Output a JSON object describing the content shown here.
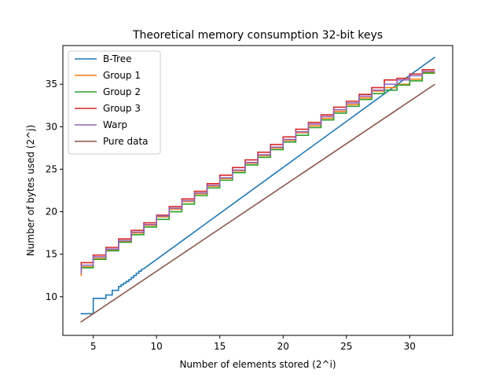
{
  "chart_data": {
    "type": "line",
    "title": "Theoretical memory consumption 32-bit keys",
    "xlabel": "Number of elements stored (2^i)",
    "ylabel": "Number of bytes used (2^j)",
    "xlim": [
      2.6,
      33.4
    ],
    "ylim": [
      5.45,
      39.55
    ],
    "xticks": [
      5,
      10,
      15,
      20,
      25,
      30
    ],
    "yticks": [
      10,
      15,
      20,
      25,
      30,
      35
    ],
    "grid": false,
    "legend_position": "top-left",
    "series": [
      {
        "name": "B-Tree",
        "color": "#1f77b4",
        "points": [
          [
            4,
            8.0
          ],
          [
            5,
            8.0
          ],
          [
            5,
            9.8
          ],
          [
            6,
            9.8
          ],
          [
            6,
            10.2
          ],
          [
            6.5,
            10.2
          ],
          [
            6.5,
            10.75
          ],
          [
            7,
            10.75
          ],
          [
            7,
            11.2
          ],
          [
            7.2,
            11.2
          ],
          [
            7.2,
            11.4
          ],
          [
            7.4,
            11.4
          ],
          [
            7.4,
            11.6
          ],
          [
            7.6,
            11.6
          ],
          [
            7.6,
            11.8
          ],
          [
            7.8,
            11.8
          ],
          [
            7.8,
            12.0
          ],
          [
            8,
            12.0
          ],
          [
            8,
            12.25
          ],
          [
            8.2,
            12.25
          ],
          [
            8.2,
            12.5
          ],
          [
            8.4,
            12.5
          ],
          [
            8.4,
            12.75
          ],
          [
            8.6,
            12.75
          ],
          [
            8.6,
            13.0
          ],
          [
            8.8,
            13.0
          ],
          [
            8.8,
            13.2
          ],
          [
            9,
            13.3
          ],
          [
            32,
            38.2
          ]
        ]
      },
      {
        "name": "Group 1",
        "color": "#ff7f0e",
        "steps": [
          {
            "x": 4,
            "y": 12.5
          },
          {
            "x": 4.05,
            "y": 13.5
          },
          {
            "x": 5,
            "y": 14.5
          },
          {
            "x": 6,
            "y": 15.5
          },
          {
            "x": 7,
            "y": 16.5
          },
          {
            "x": 8,
            "y": 17.5
          },
          {
            "x": 9,
            "y": 18.4
          },
          {
            "x": 10,
            "y": 19.4
          },
          {
            "x": 11,
            "y": 20.3
          },
          {
            "x": 12,
            "y": 21.2
          },
          {
            "x": 13,
            "y": 22.1
          },
          {
            "x": 14,
            "y": 23.0
          },
          {
            "x": 15,
            "y": 23.9
          },
          {
            "x": 16,
            "y": 24.8
          },
          {
            "x": 17,
            "y": 25.7
          },
          {
            "x": 18,
            "y": 26.6
          },
          {
            "x": 19,
            "y": 27.5
          },
          {
            "x": 20,
            "y": 28.4
          },
          {
            "x": 21,
            "y": 29.3
          },
          {
            "x": 22,
            "y": 30.1
          },
          {
            "x": 23,
            "y": 31.0
          },
          {
            "x": 24,
            "y": 31.8
          },
          {
            "x": 25,
            "y": 32.6
          },
          {
            "x": 26,
            "y": 33.4
          },
          {
            "x": 27,
            "y": 34.2
          },
          {
            "x": 28,
            "y": 34.6
          },
          {
            "x": 29,
            "y": 35.0
          },
          {
            "x": 30,
            "y": 35.6
          },
          {
            "x": 31,
            "y": 36.4
          }
        ],
        "x_end": 32
      },
      {
        "name": "Group 2",
        "color": "#2ca02c",
        "steps": [
          {
            "x": 4,
            "y": 13.0
          },
          {
            "x": 4.05,
            "y": 13.4
          },
          {
            "x": 5,
            "y": 14.4
          },
          {
            "x": 6,
            "y": 15.4
          },
          {
            "x": 7,
            "y": 16.4
          },
          {
            "x": 8,
            "y": 17.3
          },
          {
            "x": 9,
            "y": 18.2
          },
          {
            "x": 10,
            "y": 19.1
          },
          {
            "x": 11,
            "y": 20.0
          },
          {
            "x": 12,
            "y": 20.9
          },
          {
            "x": 13,
            "y": 21.9
          },
          {
            "x": 14,
            "y": 22.8
          },
          {
            "x": 15,
            "y": 23.7
          },
          {
            "x": 16,
            "y": 24.6
          },
          {
            "x": 17,
            "y": 25.5
          },
          {
            "x": 18,
            "y": 26.4
          },
          {
            "x": 19,
            "y": 27.3
          },
          {
            "x": 20,
            "y": 28.2
          },
          {
            "x": 21,
            "y": 29.0
          },
          {
            "x": 22,
            "y": 29.9
          },
          {
            "x": 23,
            "y": 30.8
          },
          {
            "x": 24,
            "y": 31.6
          },
          {
            "x": 25,
            "y": 32.4
          },
          {
            "x": 26,
            "y": 33.2
          },
          {
            "x": 27,
            "y": 33.9
          },
          {
            "x": 28,
            "y": 34.3
          },
          {
            "x": 29,
            "y": 34.9
          },
          {
            "x": 30,
            "y": 35.4
          },
          {
            "x": 31,
            "y": 36.3
          }
        ],
        "x_end": 32
      },
      {
        "name": "Group 3",
        "color": "#d62728",
        "steps": [
          {
            "x": 4,
            "y": 13.2
          },
          {
            "x": 4.05,
            "y": 14.0
          },
          {
            "x": 5,
            "y": 14.9
          },
          {
            "x": 6,
            "y": 15.8
          },
          {
            "x": 7,
            "y": 16.8
          },
          {
            "x": 8,
            "y": 17.8
          },
          {
            "x": 9,
            "y": 18.7
          },
          {
            "x": 10,
            "y": 19.6
          },
          {
            "x": 11,
            "y": 20.6
          },
          {
            "x": 12,
            "y": 21.5
          },
          {
            "x": 13,
            "y": 22.4
          },
          {
            "x": 14,
            "y": 23.3
          },
          {
            "x": 15,
            "y": 24.3
          },
          {
            "x": 16,
            "y": 25.2
          },
          {
            "x": 17,
            "y": 26.1
          },
          {
            "x": 18,
            "y": 27.0
          },
          {
            "x": 19,
            "y": 27.9
          },
          {
            "x": 20,
            "y": 28.8
          },
          {
            "x": 21,
            "y": 29.7
          },
          {
            "x": 22,
            "y": 30.5
          },
          {
            "x": 23,
            "y": 31.4
          },
          {
            "x": 24,
            "y": 32.3
          },
          {
            "x": 25,
            "y": 33.0
          },
          {
            "x": 26,
            "y": 33.8
          },
          {
            "x": 27,
            "y": 34.6
          },
          {
            "x": 28,
            "y": 35.5
          },
          {
            "x": 29,
            "y": 35.7
          },
          {
            "x": 30,
            "y": 36.2
          },
          {
            "x": 31,
            "y": 36.7
          }
        ],
        "x_end": 32
      },
      {
        "name": "Warp",
        "color": "#9467bd",
        "steps": [
          {
            "x": 4,
            "y": 12.8
          },
          {
            "x": 4.05,
            "y": 13.7
          },
          {
            "x": 5,
            "y": 14.7
          },
          {
            "x": 6,
            "y": 15.6
          },
          {
            "x": 7,
            "y": 16.6
          },
          {
            "x": 8,
            "y": 17.6
          },
          {
            "x": 9,
            "y": 18.5
          },
          {
            "x": 10,
            "y": 19.5
          },
          {
            "x": 11,
            "y": 20.4
          },
          {
            "x": 12,
            "y": 21.3
          },
          {
            "x": 13,
            "y": 22.2
          },
          {
            "x": 14,
            "y": 23.1
          },
          {
            "x": 15,
            "y": 24.0
          },
          {
            "x": 16,
            "y": 24.9
          },
          {
            "x": 17,
            "y": 25.8
          },
          {
            "x": 18,
            "y": 26.7
          },
          {
            "x": 19,
            "y": 27.6
          },
          {
            "x": 20,
            "y": 28.5
          },
          {
            "x": 21,
            "y": 29.4
          },
          {
            "x": 22,
            "y": 30.3
          },
          {
            "x": 23,
            "y": 31.2
          },
          {
            "x": 24,
            "y": 32.0
          },
          {
            "x": 25,
            "y": 32.8
          },
          {
            "x": 26,
            "y": 33.6
          },
          {
            "x": 27,
            "y": 34.3
          },
          {
            "x": 28,
            "y": 35.0
          },
          {
            "x": 29,
            "y": 35.5
          },
          {
            "x": 30,
            "y": 36.0
          },
          {
            "x": 31,
            "y": 36.5
          }
        ],
        "x_end": 32
      },
      {
        "name": "Pure data",
        "color": "#8c564b",
        "points": [
          [
            4,
            7.0
          ],
          [
            32,
            35.0
          ]
        ]
      }
    ]
  }
}
